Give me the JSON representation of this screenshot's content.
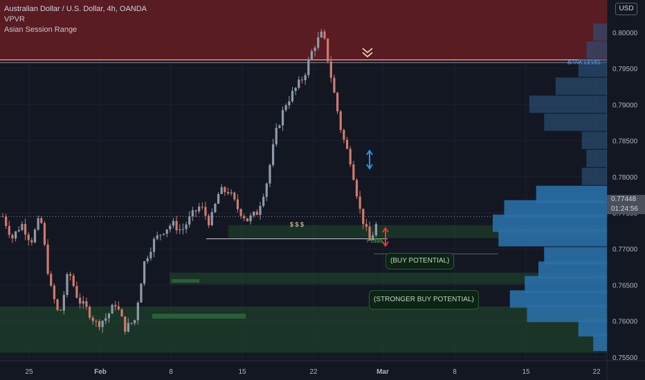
{
  "header": {
    "title": "Australian Dollar / U.S. Dollar, 4h, OANDA",
    "indicators": [
      "VPVR",
      "Asian Session Range"
    ],
    "currency": "USD"
  },
  "price_tag": {
    "price": "0.77448",
    "countdown": "01:24:56"
  },
  "annotations": {
    "bank_level": "BANK LEVEL",
    "dollars": "$ $ $",
    "pl": "PL$$$",
    "buy": "(BUY POTENTIAL)",
    "stronger_buy": "(STRONGER BUY POTENTIAL)"
  },
  "colors": {
    "background": "#131722",
    "up": "#8f9aa8",
    "down": "#d07a6e",
    "supply_zone": "#6b1e22",
    "demand_zone": "#1f4a2c",
    "volume_profile": "#2a6fa6",
    "arrow_blue": "#2196f3",
    "arrow_red": "#e53935"
  },
  "chart_data": {
    "type": "candlestick",
    "symbol": "AUDUSD",
    "timeframe": "4h",
    "y_axis": {
      "ticks": [
        "0.80000",
        "0.79500",
        "0.79000",
        "0.78500",
        "0.78000",
        "0.77500",
        "0.77000",
        "0.76500",
        "0.76000",
        "0.75500"
      ],
      "range": [
        0.7545,
        0.8045
      ]
    },
    "x_axis": {
      "ticks": [
        "25",
        "Feb",
        "8",
        "15",
        "22",
        "Mar",
        "8",
        "15",
        "22"
      ]
    },
    "last_price": 0.77448,
    "path_points": [
      [
        "Jan 20",
        0.7745
      ],
      [
        "Jan 22",
        0.7715
      ],
      [
        "Jan 23",
        0.7735
      ],
      [
        "Jan 25",
        0.771
      ],
      [
        "Jan 26",
        0.7745
      ],
      [
        "Jan 27",
        0.765
      ],
      [
        "Jan 28",
        0.7605
      ],
      [
        "Jan 29",
        0.767
      ],
      [
        "Jan 30",
        0.763
      ],
      [
        "Feb 1",
        0.7615
      ],
      [
        "Feb 2",
        0.7595
      ],
      [
        "Feb 3",
        0.7605
      ],
      [
        "Feb 4",
        0.7625
      ],
      [
        "Feb 5",
        0.759
      ],
      [
        "Feb 6",
        0.76
      ],
      [
        "Feb 8",
        0.768
      ],
      [
        "Feb 9",
        0.771
      ],
      [
        "Feb 10",
        0.7725
      ],
      [
        "Feb 11",
        0.7735
      ],
      [
        "Feb 12",
        0.7725
      ],
      [
        "Feb 13",
        0.7745
      ],
      [
        "Feb 14",
        0.776
      ],
      [
        "Feb 15",
        0.7735
      ],
      [
        "Feb 16",
        0.778
      ],
      [
        "Feb 17",
        0.778
      ],
      [
        "Feb 18",
        0.7755
      ],
      [
        "Feb 19",
        0.774
      ],
      [
        "Feb 20",
        0.775
      ],
      [
        "Feb 21",
        0.779
      ],
      [
        "Feb 22",
        0.786
      ],
      [
        "Feb 23",
        0.79
      ],
      [
        "Feb 24",
        0.792
      ],
      [
        "Feb 25",
        0.794
      ],
      [
        "Feb 26",
        0.798
      ],
      [
        "Feb 26b",
        0.8
      ],
      [
        "Feb 27",
        0.793
      ],
      [
        "Feb 28",
        0.786
      ],
      [
        "Mar 1",
        0.782
      ],
      [
        "Mar 1b",
        0.775
      ],
      [
        "Mar 2",
        0.771
      ],
      [
        "Mar 2b",
        0.77448
      ]
    ],
    "zones": [
      {
        "name": "supply",
        "from": 0.796,
        "to": 0.8045
      },
      {
        "name": "demand-upper",
        "from": 0.7715,
        "to": 0.7733
      },
      {
        "name": "buy-potential",
        "from": 0.7651,
        "to": 0.7667
      },
      {
        "name": "stronger-buy-potential",
        "from": 0.7556,
        "to": 0.762
      }
    ],
    "levels": [
      {
        "name": "bank-level",
        "price": 0.796
      },
      {
        "name": "liquidity-line",
        "price": 0.7714
      }
    ],
    "volume_profile": [
      {
        "price": 0.8,
        "value": 0.12
      },
      {
        "price": 0.7975,
        "value": 0.18
      },
      {
        "price": 0.795,
        "value": 0.25
      },
      {
        "price": 0.7925,
        "value": 0.45
      },
      {
        "price": 0.79,
        "value": 0.68
      },
      {
        "price": 0.7875,
        "value": 0.55
      },
      {
        "price": 0.785,
        "value": 0.22
      },
      {
        "price": 0.7825,
        "value": 0.18
      },
      {
        "price": 0.78,
        "value": 0.22
      },
      {
        "price": 0.7775,
        "value": 0.62
      },
      {
        "price": 0.7755,
        "value": 0.9
      },
      {
        "price": 0.7735,
        "value": 1.0
      },
      {
        "price": 0.7715,
        "value": 0.95
      },
      {
        "price": 0.769,
        "value": 0.55
      },
      {
        "price": 0.767,
        "value": 0.6
      },
      {
        "price": 0.765,
        "value": 0.72
      },
      {
        "price": 0.763,
        "value": 0.85
      },
      {
        "price": 0.761,
        "value": 0.7
      },
      {
        "price": 0.759,
        "value": 0.25
      },
      {
        "price": 0.757,
        "value": 0.12
      }
    ],
    "grid": true
  }
}
